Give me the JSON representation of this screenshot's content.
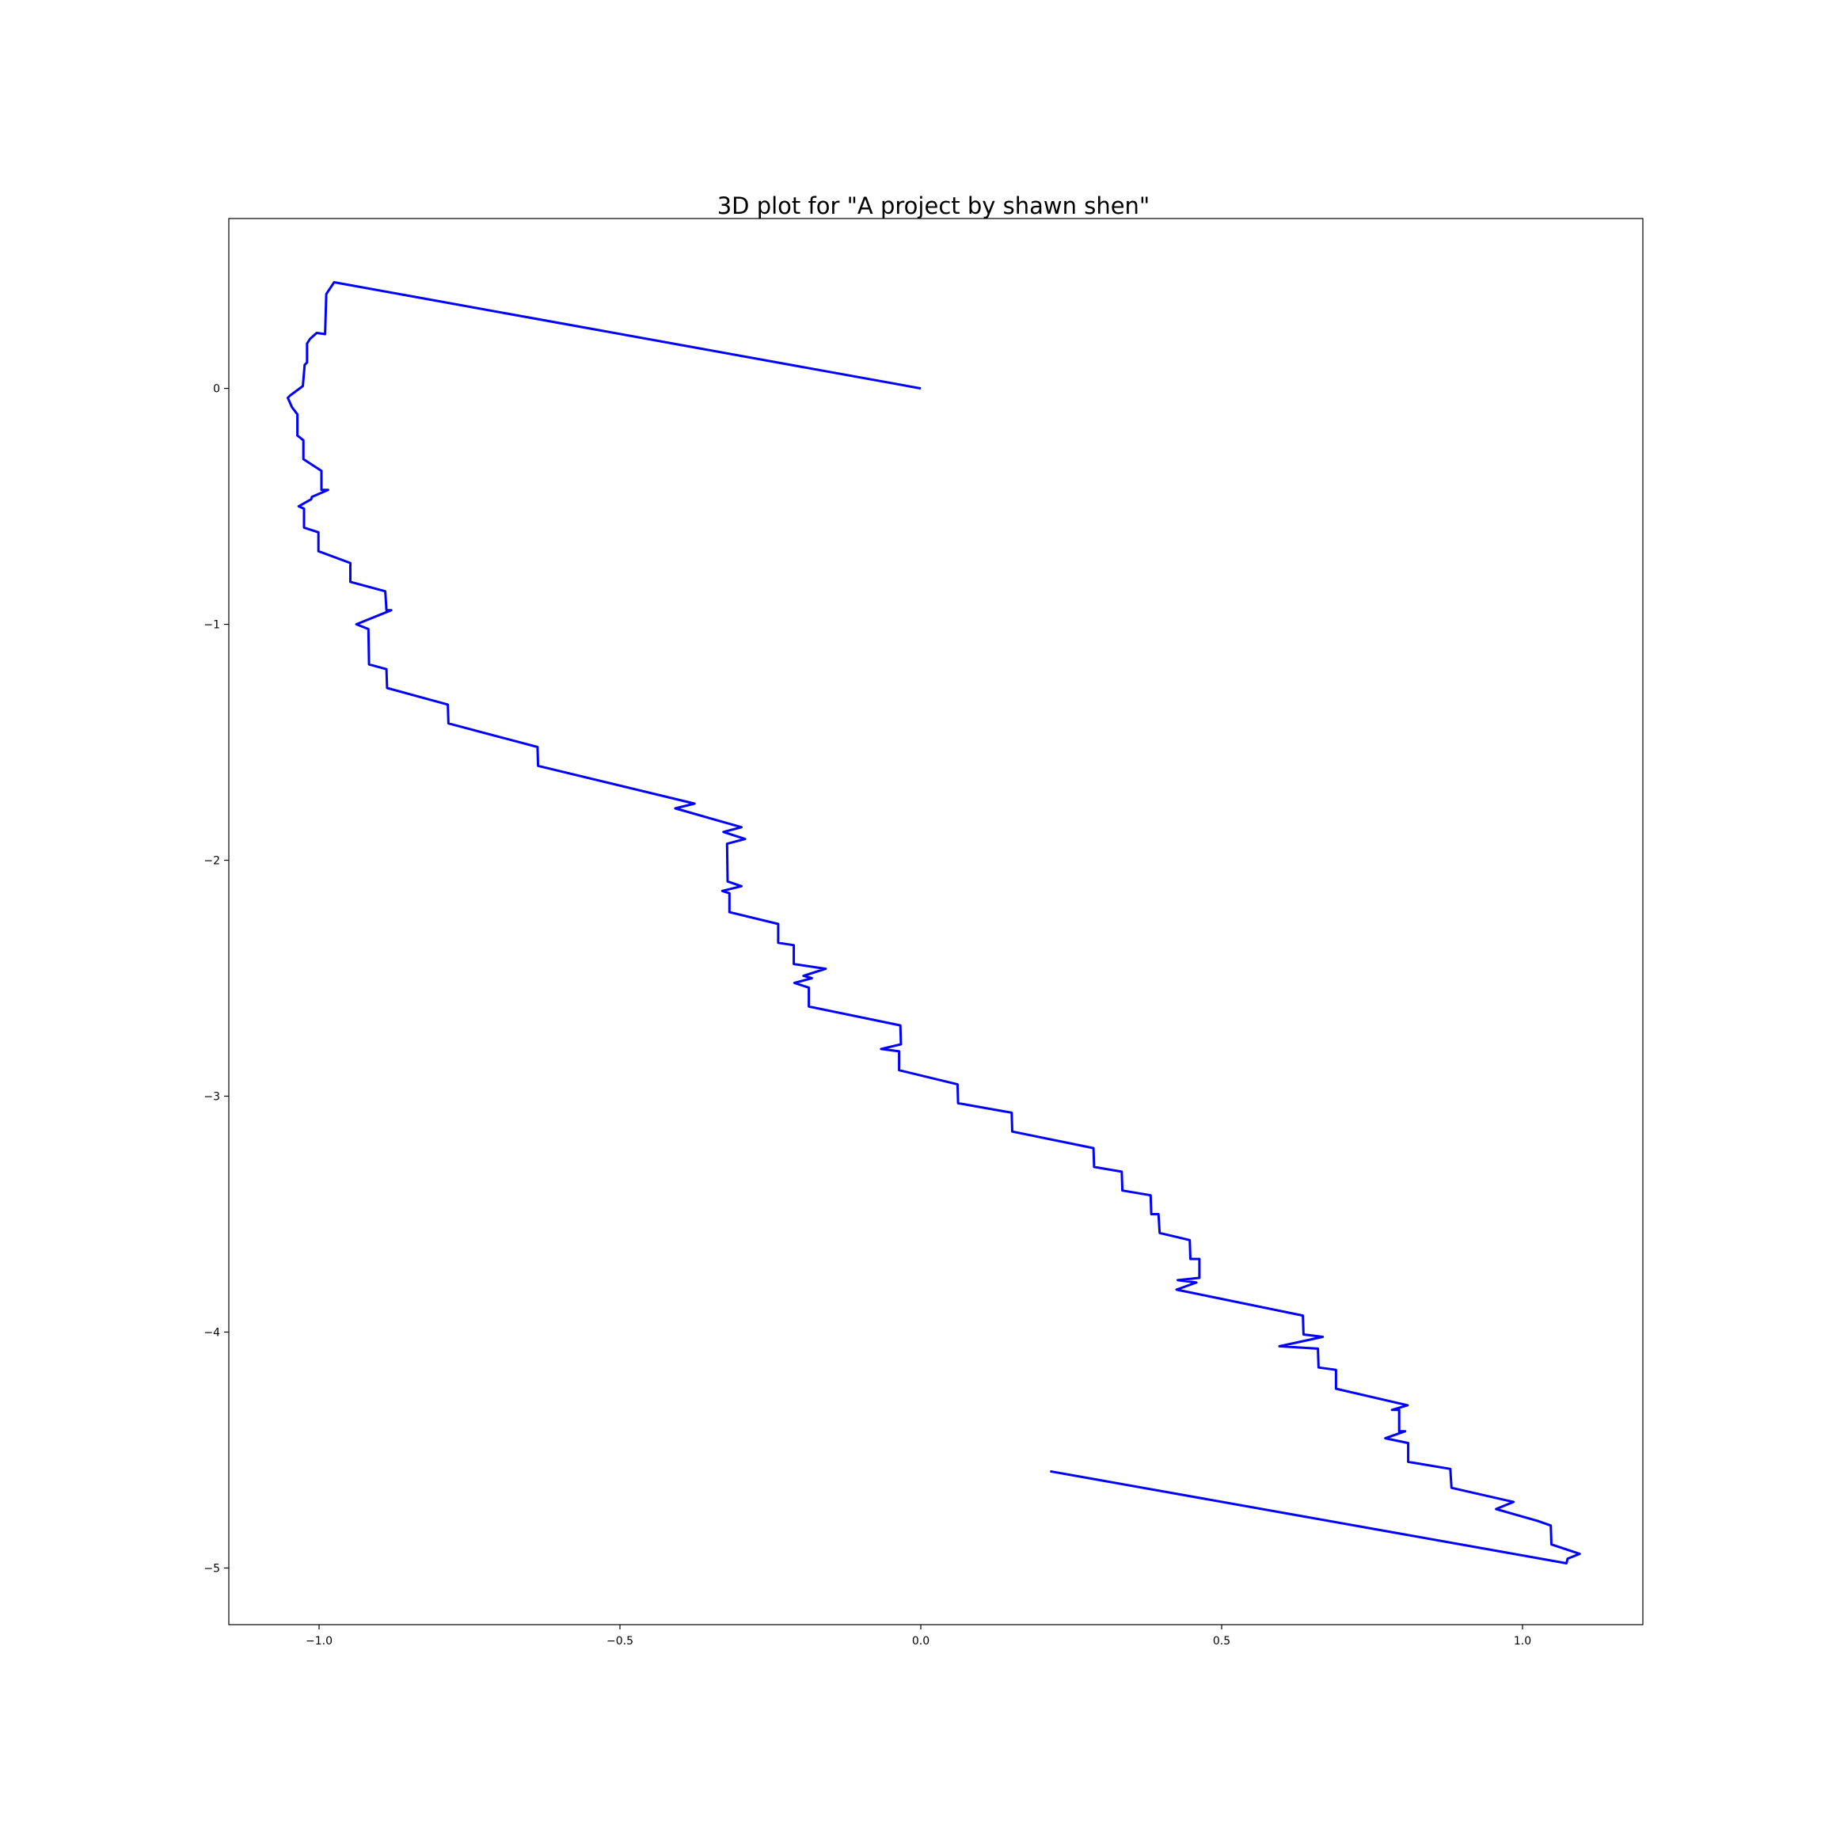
{
  "chart_data": {
    "type": "line",
    "title": "3D plot for \"A project by shawn shen\"",
    "xlabel": "",
    "ylabel": "",
    "xlim": [
      -1.15,
      1.2
    ],
    "ylim": [
      -5.24,
      0.72
    ],
    "grid": false,
    "x_ticks": [
      {
        "value": -1.0,
        "label": "−1.0"
      },
      {
        "value": -0.5,
        "label": "−0.5"
      },
      {
        "value": 0.0,
        "label": "0.0"
      },
      {
        "value": 0.5,
        "label": "0.5"
      },
      {
        "value": 1.0,
        "label": "1.0"
      }
    ],
    "y_ticks": [
      {
        "value": 0,
        "label": "0"
      },
      {
        "value": -1,
        "label": "−1"
      },
      {
        "value": -2,
        "label": "−2"
      },
      {
        "value": -3,
        "label": "−3"
      },
      {
        "value": -4,
        "label": "−4"
      },
      {
        "value": -5,
        "label": "−5"
      }
    ],
    "series": [
      {
        "color": "#0000ff",
        "points": [
          [
            0.0,
            0.0
          ],
          [
            -0.975,
            0.45
          ],
          [
            -0.988,
            0.4
          ],
          [
            -0.99,
            0.23
          ],
          [
            -1.004,
            0.235
          ],
          [
            -1.015,
            0.21
          ],
          [
            -1.02,
            0.19
          ],
          [
            -1.02,
            0.11
          ],
          [
            -1.024,
            0.1
          ],
          [
            -1.027,
            0.01
          ],
          [
            -1.048,
            -0.03
          ],
          [
            -1.052,
            -0.04
          ],
          [
            -1.045,
            -0.08
          ],
          [
            -1.036,
            -0.11
          ],
          [
            -1.036,
            -0.2
          ],
          [
            -1.026,
            -0.22
          ],
          [
            -1.026,
            -0.3
          ],
          [
            -0.996,
            -0.35
          ],
          [
            -0.996,
            -0.43
          ],
          [
            -0.985,
            -0.43
          ],
          [
            -1.012,
            -0.46
          ],
          [
            -1.013,
            -0.47
          ],
          [
            -1.034,
            -0.5
          ],
          [
            -1.025,
            -0.51
          ],
          [
            -1.025,
            -0.59
          ],
          [
            -1.001,
            -0.61
          ],
          [
            -1.001,
            -0.69
          ],
          [
            -0.948,
            -0.74
          ],
          [
            -0.948,
            -0.82
          ],
          [
            -0.89,
            -0.86
          ],
          [
            -0.888,
            -0.94
          ],
          [
            -0.88,
            -0.94
          ],
          [
            -0.938,
            -1.0
          ],
          [
            -0.918,
            -1.02
          ],
          [
            -0.917,
            -1.17
          ],
          [
            -0.888,
            -1.19
          ],
          [
            -0.887,
            -1.27
          ],
          [
            -0.786,
            -1.34
          ],
          [
            -0.785,
            -1.42
          ],
          [
            -0.637,
            -1.52
          ],
          [
            -0.636,
            -1.6
          ],
          [
            -0.376,
            -1.76
          ],
          [
            -0.408,
            -1.78
          ],
          [
            -0.298,
            -1.86
          ],
          [
            -0.328,
            -1.88
          ],
          [
            -0.292,
            -1.91
          ],
          [
            -0.322,
            -1.93
          ],
          [
            -0.321,
            -2.09
          ],
          [
            -0.298,
            -2.11
          ],
          [
            -0.33,
            -2.13
          ],
          [
            -0.318,
            -2.14
          ],
          [
            -0.318,
            -2.22
          ],
          [
            -0.237,
            -2.27
          ],
          [
            -0.237,
            -2.35
          ],
          [
            -0.211,
            -2.36
          ],
          [
            -0.211,
            -2.44
          ],
          [
            -0.158,
            -2.46
          ],
          [
            -0.195,
            -2.49
          ],
          [
            -0.181,
            -2.5
          ],
          [
            -0.21,
            -2.52
          ],
          [
            -0.186,
            -2.54
          ],
          [
            -0.186,
            -2.62
          ],
          [
            -0.034,
            -2.7
          ],
          [
            -0.033,
            -2.78
          ],
          [
            -0.066,
            -2.8
          ],
          [
            -0.036,
            -2.81
          ],
          [
            -0.036,
            -2.89
          ],
          [
            0.061,
            -2.95
          ],
          [
            0.062,
            -3.03
          ],
          [
            0.151,
            -3.07
          ],
          [
            0.152,
            -3.15
          ],
          [
            0.287,
            -3.22
          ],
          [
            0.288,
            -3.3
          ],
          [
            0.334,
            -3.32
          ],
          [
            0.335,
            -3.4
          ],
          [
            0.382,
            -3.42
          ],
          [
            0.383,
            -3.5
          ],
          [
            0.395,
            -3.5
          ],
          [
            0.397,
            -3.58
          ],
          [
            0.447,
            -3.61
          ],
          [
            0.448,
            -3.69
          ],
          [
            0.463,
            -3.69
          ],
          [
            0.463,
            -3.77
          ],
          [
            0.427,
            -3.78
          ],
          [
            0.458,
            -3.79
          ],
          [
            0.425,
            -3.82
          ],
          [
            0.635,
            -3.93
          ],
          [
            0.636,
            -4.01
          ],
          [
            0.668,
            -4.02
          ],
          [
            0.596,
            -4.06
          ],
          [
            0.66,
            -4.07
          ],
          [
            0.661,
            -4.15
          ],
          [
            0.69,
            -4.16
          ],
          [
            0.69,
            -4.24
          ],
          [
            0.809,
            -4.31
          ],
          [
            0.783,
            -4.33
          ],
          [
            0.795,
            -4.33
          ],
          [
            0.795,
            -4.42
          ],
          [
            0.805,
            -4.42
          ],
          [
            0.772,
            -4.45
          ],
          [
            0.81,
            -4.47
          ],
          [
            0.81,
            -4.55
          ],
          [
            0.88,
            -4.58
          ],
          [
            0.882,
            -4.66
          ],
          [
            0.985,
            -4.72
          ],
          [
            0.956,
            -4.75
          ],
          [
            1.025,
            -4.8
          ],
          [
            1.047,
            -4.82
          ],
          [
            1.048,
            -4.9
          ],
          [
            1.095,
            -4.94
          ],
          [
            1.085,
            -4.95
          ],
          [
            1.075,
            -4.96
          ],
          [
            1.073,
            -4.98
          ],
          [
            0.215,
            -4.59
          ]
        ]
      }
    ]
  }
}
